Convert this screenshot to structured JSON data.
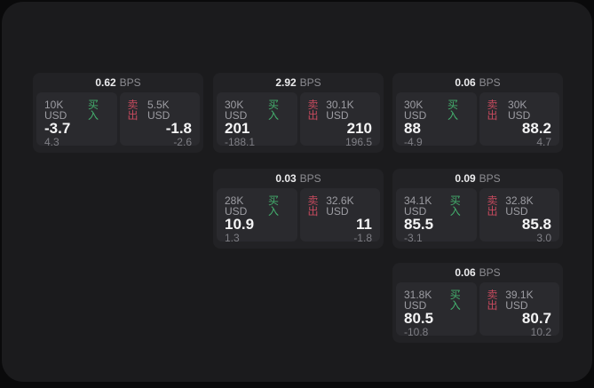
{
  "labels": {
    "bps": "BPS",
    "buy": "买入",
    "sell": "卖出"
  },
  "colors": {
    "background": "#0a0a0b",
    "surface": "#1b1b1d",
    "card": "#222225",
    "panel": "#2a2a2e",
    "buy_green": "#44b06e",
    "sell_red": "#c64a5e",
    "price_white": "#f4f4f5",
    "muted_gray": "#7f7f85"
  },
  "cards": [
    {
      "bps": "0.62",
      "buy": {
        "amount": "10K USD",
        "price": "-3.7",
        "delta": "4.3"
      },
      "sell": {
        "amount": "5.5K USD",
        "price": "-1.8",
        "delta": "-2.6"
      }
    },
    {
      "bps": "2.92",
      "buy": {
        "amount": "30K USD",
        "price": "201",
        "delta": "-188.1"
      },
      "sell": {
        "amount": "30.1K USD",
        "price": "210",
        "delta": "196.5"
      }
    },
    {
      "bps": "0.06",
      "buy": {
        "amount": "30K USD",
        "price": "88",
        "delta": "-4.9"
      },
      "sell": {
        "amount": "30K USD",
        "price": "88.2",
        "delta": "4.7"
      }
    },
    {
      "bps": "0.03",
      "buy": {
        "amount": "28K USD",
        "price": "10.9",
        "delta": "1.3"
      },
      "sell": {
        "amount": "32.6K USD",
        "price": "11",
        "delta": "-1.8"
      }
    },
    {
      "bps": "0.09",
      "buy": {
        "amount": "34.1K USD",
        "price": "85.5",
        "delta": "-3.1"
      },
      "sell": {
        "amount": "32.8K USD",
        "price": "85.8",
        "delta": "3.0"
      }
    },
    {
      "bps": "0.06",
      "buy": {
        "amount": "31.8K USD",
        "price": "80.5",
        "delta": "-10.8"
      },
      "sell": {
        "amount": "39.1K USD",
        "price": "80.7",
        "delta": "10.2"
      }
    }
  ]
}
